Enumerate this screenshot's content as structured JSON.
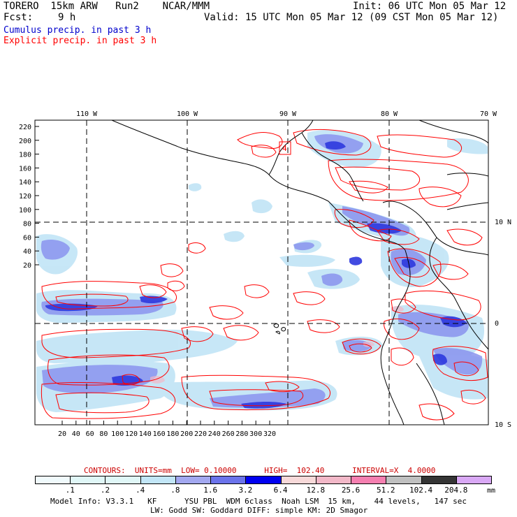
{
  "header": {
    "model": "TORERO  15km ARW   Run2    NCAR/MMM",
    "fcst_label": "Fcst:",
    "fcst_value": "9 h",
    "init": "Init: 06 UTC Mon 05 Mar 12",
    "valid": "Valid: 15 UTC Mon 05 Mar 12 (09 CST Mon 05 Mar 12)",
    "line1": "Cumulus precip. in past 3 h",
    "line1_color": "#0000cc",
    "line2": "Explicit precip. in past 3 h",
    "line2_color": "#ff0000"
  },
  "map": {
    "top_lon_labels": [
      "110 W",
      "100 W",
      "90 W",
      "80 W",
      "70 W"
    ],
    "right_lat_labels": [
      "10 N",
      "0",
      "10 S"
    ],
    "left_y_labels": [
      "220",
      "200",
      "180",
      "160",
      "140",
      "120",
      "100",
      "80",
      "60",
      "40",
      "20"
    ],
    "bottom_x_labels": [
      "20",
      "40",
      "60",
      "80",
      "100",
      "120",
      "140",
      "160",
      "180",
      "200",
      "220",
      "240",
      "260",
      "280",
      "300",
      "320"
    ],
    "box_label": "4",
    "precip_color": "#4a5ae8",
    "contour_color": "#ff0000"
  },
  "legend": {
    "contours_text": "CONTOURS:  UNITS=mm  LOW= 0.10000      HIGH=  102.40      INTERVAL=X  4.0000",
    "contours_color": "#cc0000",
    "colors": [
      "#ffffff",
      "#ffffff",
      "#f0fafc",
      "#e0f7f7",
      "#c2e6f7",
      "#a3a8f0",
      "#6b73eb",
      "#3f4be3",
      "#0000f0",
      "#f7d9d9",
      "#f2b8c8",
      "#f57fb0",
      "#c0c0c0",
      "#7a7a7a",
      "#353535",
      "#d9a8f5"
    ],
    "labels": [
      ".1",
      ".2",
      ".4",
      ".8",
      "1.6",
      "3.2",
      "6.4",
      "12.8",
      "25.6",
      "51.2",
      "102.4",
      "204.8"
    ],
    "unit": "mm"
  },
  "footer": {
    "line1": "Model Info: V3.3.1   KF      YSU PBL  WDM 6class  Noah LSM  15 km,    44 levels,   147 sec",
    "line2": "LW: Godd SW: Goddard DIFF: simple KM: 2D Smagor"
  }
}
